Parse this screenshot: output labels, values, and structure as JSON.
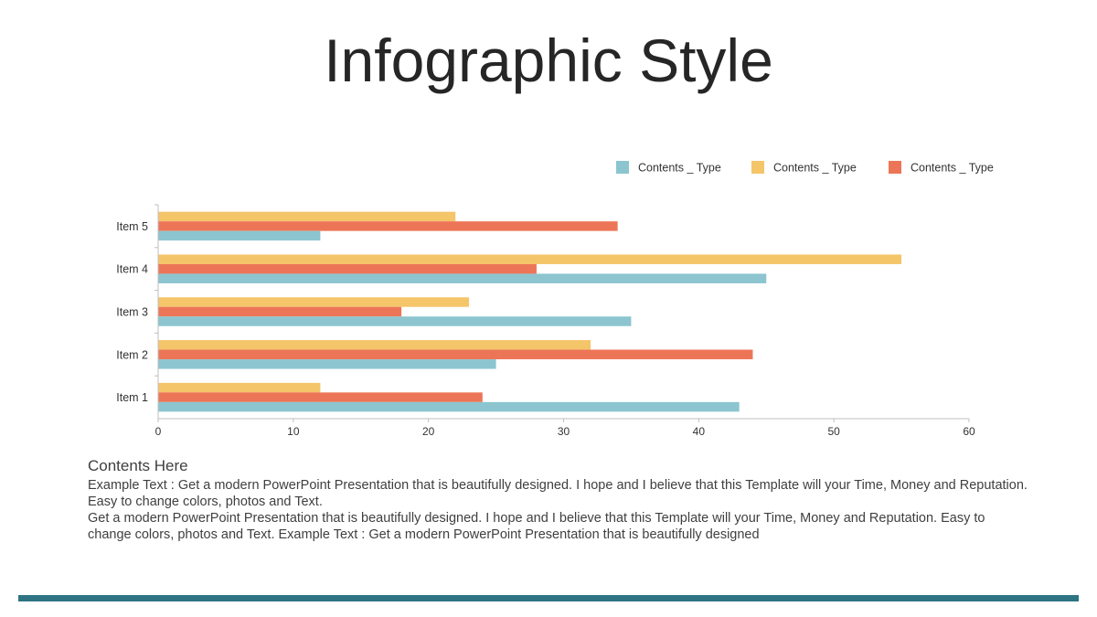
{
  "title": "Infographic Style",
  "colors": {
    "teal": "#8CC5CF",
    "yellow": "#F5C56A",
    "orange": "#ED7557",
    "rule": "#2E7483"
  },
  "chart_data": {
    "type": "bar",
    "orientation": "horizontal",
    "categories": [
      "Item 1",
      "Item 2",
      "Item 3",
      "Item 4",
      "Item 5"
    ],
    "series": [
      {
        "name": "Contents _ Type",
        "color": "#8CC5CF",
        "values": [
          43,
          25,
          35,
          45,
          12
        ]
      },
      {
        "name": "Contents _ Type",
        "color": "#F5C56A",
        "values": [
          12,
          32,
          23,
          55,
          22
        ]
      },
      {
        "name": "Contents _ Type",
        "color": "#ED7557",
        "values": [
          24,
          44,
          18,
          28,
          34
        ]
      }
    ],
    "xlim": [
      0,
      60
    ],
    "xticks": [
      0,
      10,
      20,
      30,
      40,
      50,
      60
    ],
    "legend_position": "top-right",
    "grid": false
  },
  "text": {
    "heading": "Contents Here",
    "para1": "Example Text : Get a modern PowerPoint  Presentation that is beautifully designed. I hope and I believe that this Template will your Time, Money and Reputation. Easy to change colors, photos and Text.",
    "para2": "Get a modern PowerPoint  Presentation that is beautifully designed. I hope and I believe that this Template will your Time, Money and Reputation. Easy to change colors, photos and Text. Example Text : Get a modern PowerPoint  Presentation that is beautifully designed"
  }
}
